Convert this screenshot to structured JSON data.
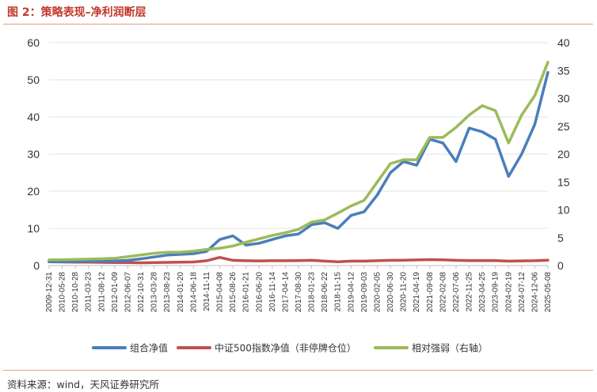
{
  "title": "图 2：策略表现–净利润断层",
  "source": "资料来源：wind，天风证券研究所",
  "chart_data": {
    "type": "line",
    "left_axis": {
      "ticks": [
        0,
        10,
        20,
        30,
        40,
        50,
        60
      ],
      "range": [
        0,
        60
      ]
    },
    "right_axis": {
      "ticks": [
        0,
        5,
        10,
        15,
        20,
        25,
        30,
        35,
        40
      ],
      "range": [
        0,
        40
      ]
    },
    "x_tick_labels": [
      "2009-12-31",
      "2010-05-28",
      "2010-10-28",
      "2011-03-23",
      "2011-08-12",
      "2012-01-09",
      "2012-06-07",
      "2012-10-31",
      "2013-03-28",
      "2013-08-23",
      "2014-01-20",
      "2014-06-18",
      "2014-11-11",
      "2015-04-08",
      "2015-08-26",
      "2016-01-21",
      "2016-06-20",
      "2016-11-14",
      "2017-04-14",
      "2017-08-30",
      "2018-01-23",
      "2018-06-22",
      "2018-11-15",
      "2019-04-12",
      "2019-09-03",
      "2020-02-05",
      "2020-06-30",
      "2020-11-20",
      "2021-04-19",
      "2021-09-08",
      "2022-02-08",
      "2022-07-06",
      "2022-11-25",
      "2023-04-25",
      "2023-09-19",
      "2024-02-19",
      "2024-07-12",
      "2024-12-06",
      "2025-05-08"
    ],
    "series": [
      {
        "name": "组合净值",
        "axis": "left",
        "color": "#4a7ebb",
        "values": [
          1.0,
          1.05,
          1.1,
          1.15,
          1.2,
          1.22,
          1.4,
          1.8,
          2.3,
          2.8,
          3.0,
          3.2,
          3.8,
          7.0,
          8.0,
          5.5,
          6.0,
          7.0,
          8.0,
          8.5,
          11.0,
          11.5,
          10.0,
          13.5,
          14.5,
          19.0,
          25.0,
          28.0,
          27.0,
          34.0,
          33.0,
          28.0,
          37.0,
          36.0,
          34.0,
          24.0,
          30.0,
          38.0,
          52.0
        ]
      },
      {
        "name": "中证500指数净值（非停牌仓位）",
        "axis": "left",
        "color": "#c0504d",
        "values": [
          1.0,
          0.95,
          0.92,
          0.9,
          0.85,
          0.8,
          0.78,
          0.75,
          0.8,
          0.85,
          0.9,
          0.95,
          1.3,
          2.2,
          1.4,
          1.3,
          1.25,
          1.3,
          1.3,
          1.35,
          1.4,
          1.2,
          1.0,
          1.2,
          1.2,
          1.3,
          1.4,
          1.45,
          1.5,
          1.6,
          1.55,
          1.4,
          1.35,
          1.35,
          1.35,
          1.2,
          1.25,
          1.3,
          1.45
        ]
      },
      {
        "name": "相对强弱（右轴）",
        "axis": "right",
        "color": "#9bbb59",
        "values": [
          1.0,
          1.05,
          1.1,
          1.15,
          1.2,
          1.3,
          1.6,
          1.9,
          2.2,
          2.4,
          2.4,
          2.6,
          2.9,
          3.1,
          3.5,
          4.2,
          4.8,
          5.4,
          5.9,
          6.5,
          7.8,
          8.2,
          9.4,
          10.7,
          11.7,
          15.0,
          18.3,
          19.0,
          19.0,
          23.0,
          23.0,
          24.8,
          27.0,
          28.7,
          27.8,
          22.0,
          27.0,
          30.5,
          36.5
        ]
      }
    ]
  },
  "legend": [
    {
      "label": "组合净值",
      "color": "#4a7ebb"
    },
    {
      "label": "中证500指数净值（非停牌仓位）",
      "color": "#c0504d"
    },
    {
      "label": "相对强弱（右轴）",
      "color": "#9bbb59"
    }
  ]
}
